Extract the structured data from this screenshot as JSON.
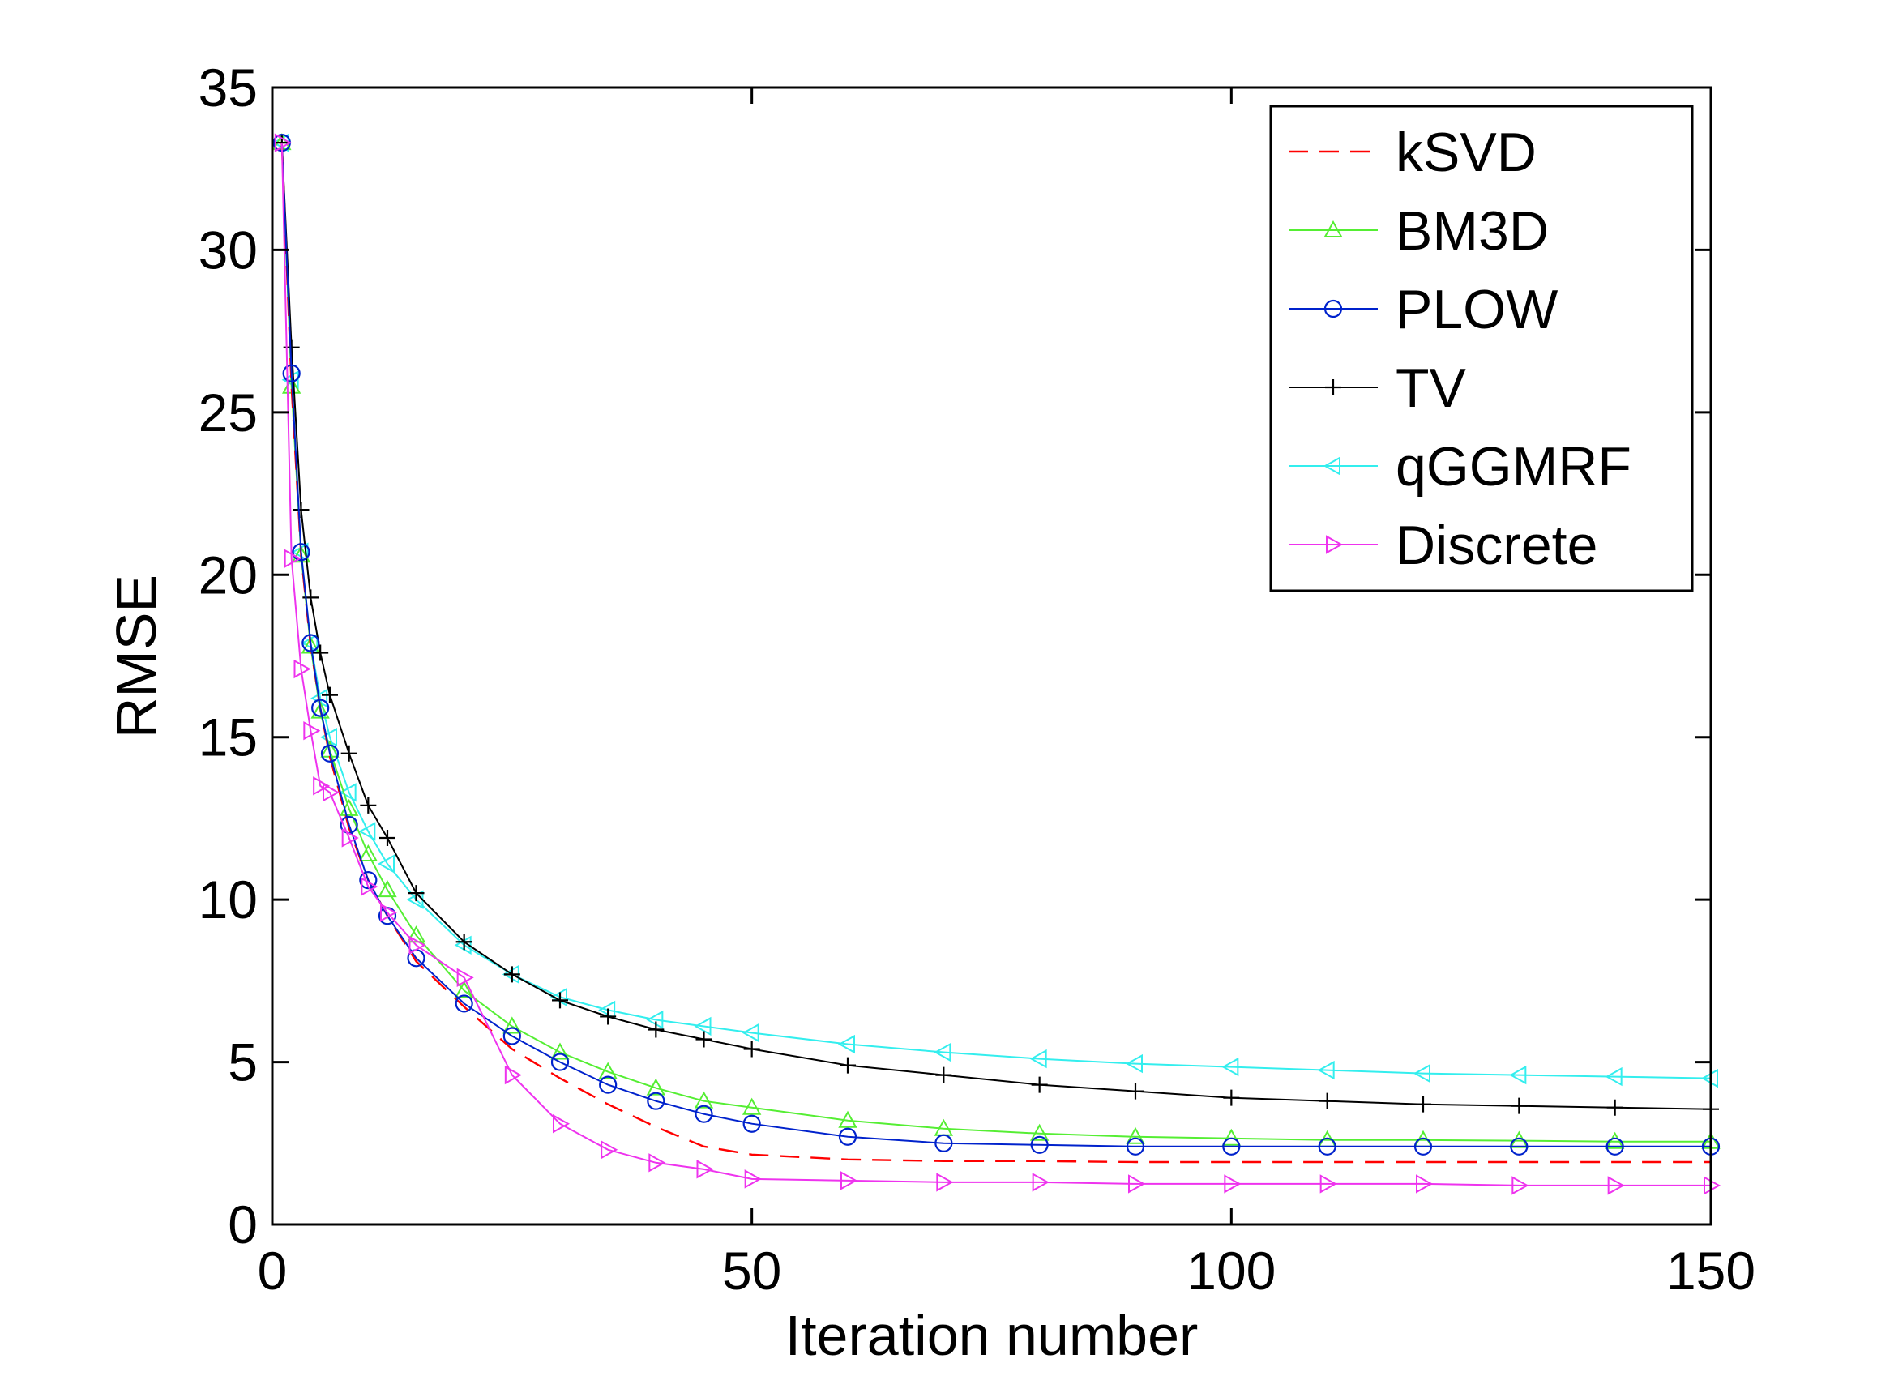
{
  "chart_data": {
    "type": "line",
    "xlabel": "Iteration number",
    "ylabel": "RMSE",
    "xlim": [
      0,
      150
    ],
    "ylim": [
      0,
      35
    ],
    "xticks": [
      0,
      50,
      100,
      150
    ],
    "yticks": [
      0,
      5,
      10,
      15,
      20,
      25,
      30,
      35
    ],
    "x_tick_labels": [
      "0",
      "50",
      "100",
      "150"
    ],
    "y_tick_labels": [
      "0",
      "5",
      "10",
      "15",
      "20",
      "25",
      "30",
      "35"
    ],
    "grid": false,
    "legend_position": "top-right",
    "x": [
      1,
      2,
      3,
      4,
      5,
      6,
      8,
      10,
      12,
      15,
      20,
      25,
      30,
      35,
      40,
      45,
      50,
      60,
      70,
      80,
      90,
      100,
      110,
      120,
      130,
      140,
      150
    ],
    "series": [
      {
        "name": "kSVD",
        "color": "#ff0000",
        "marker": "none",
        "dash": true,
        "values": [
          33.3,
          25.8,
          20.6,
          17.8,
          15.9,
          14.4,
          12.2,
          10.6,
          9.5,
          8.1,
          6.7,
          5.4,
          4.5,
          3.7,
          3.0,
          2.4,
          2.15,
          2.0,
          1.95,
          1.95,
          1.92,
          1.92,
          1.92,
          1.92,
          1.92,
          1.92,
          1.92
        ]
      },
      {
        "name": "BM3D",
        "color": "#55ee33",
        "marker": "triangle-up",
        "values": [
          33.3,
          25.8,
          20.6,
          17.8,
          15.8,
          14.6,
          12.8,
          11.4,
          10.3,
          8.9,
          7.2,
          6.1,
          5.3,
          4.7,
          4.2,
          3.8,
          3.6,
          3.2,
          2.95,
          2.8,
          2.7,
          2.65,
          2.6,
          2.6,
          2.58,
          2.55,
          2.55
        ]
      },
      {
        "name": "PLOW",
        "color": "#0022cc",
        "marker": "circle",
        "values": [
          33.3,
          26.2,
          20.7,
          17.9,
          15.9,
          14.5,
          12.3,
          10.6,
          9.5,
          8.2,
          6.8,
          5.8,
          5.0,
          4.3,
          3.8,
          3.4,
          3.1,
          2.7,
          2.5,
          2.45,
          2.4,
          2.4,
          2.4,
          2.4,
          2.4,
          2.4,
          2.4
        ]
      },
      {
        "name": "TV",
        "color": "#000000",
        "marker": "plus",
        "values": [
          33.3,
          27.0,
          22.0,
          19.3,
          17.6,
          16.3,
          14.5,
          12.9,
          11.9,
          10.2,
          8.7,
          7.7,
          6.9,
          6.4,
          6.0,
          5.7,
          5.4,
          4.9,
          4.6,
          4.3,
          4.1,
          3.9,
          3.8,
          3.7,
          3.65,
          3.6,
          3.55
        ]
      },
      {
        "name": "qGGMRF",
        "color": "#33eeee",
        "marker": "triangle-left",
        "values": [
          33.3,
          26.0,
          20.7,
          17.9,
          16.2,
          15.0,
          13.3,
          12.1,
          11.1,
          10.0,
          8.6,
          7.7,
          7.0,
          6.6,
          6.3,
          6.1,
          5.9,
          5.55,
          5.3,
          5.1,
          4.95,
          4.85,
          4.75,
          4.65,
          4.6,
          4.55,
          4.5
        ]
      },
      {
        "name": "Discrete",
        "color": "#ee33ee",
        "marker": "triangle-right",
        "values": [
          33.3,
          20.5,
          17.1,
          15.2,
          13.5,
          13.3,
          11.9,
          10.4,
          9.6,
          8.6,
          7.6,
          4.6,
          3.1,
          2.3,
          1.9,
          1.7,
          1.4,
          1.35,
          1.3,
          1.3,
          1.25,
          1.25,
          1.25,
          1.25,
          1.2,
          1.2,
          1.2
        ]
      }
    ]
  }
}
